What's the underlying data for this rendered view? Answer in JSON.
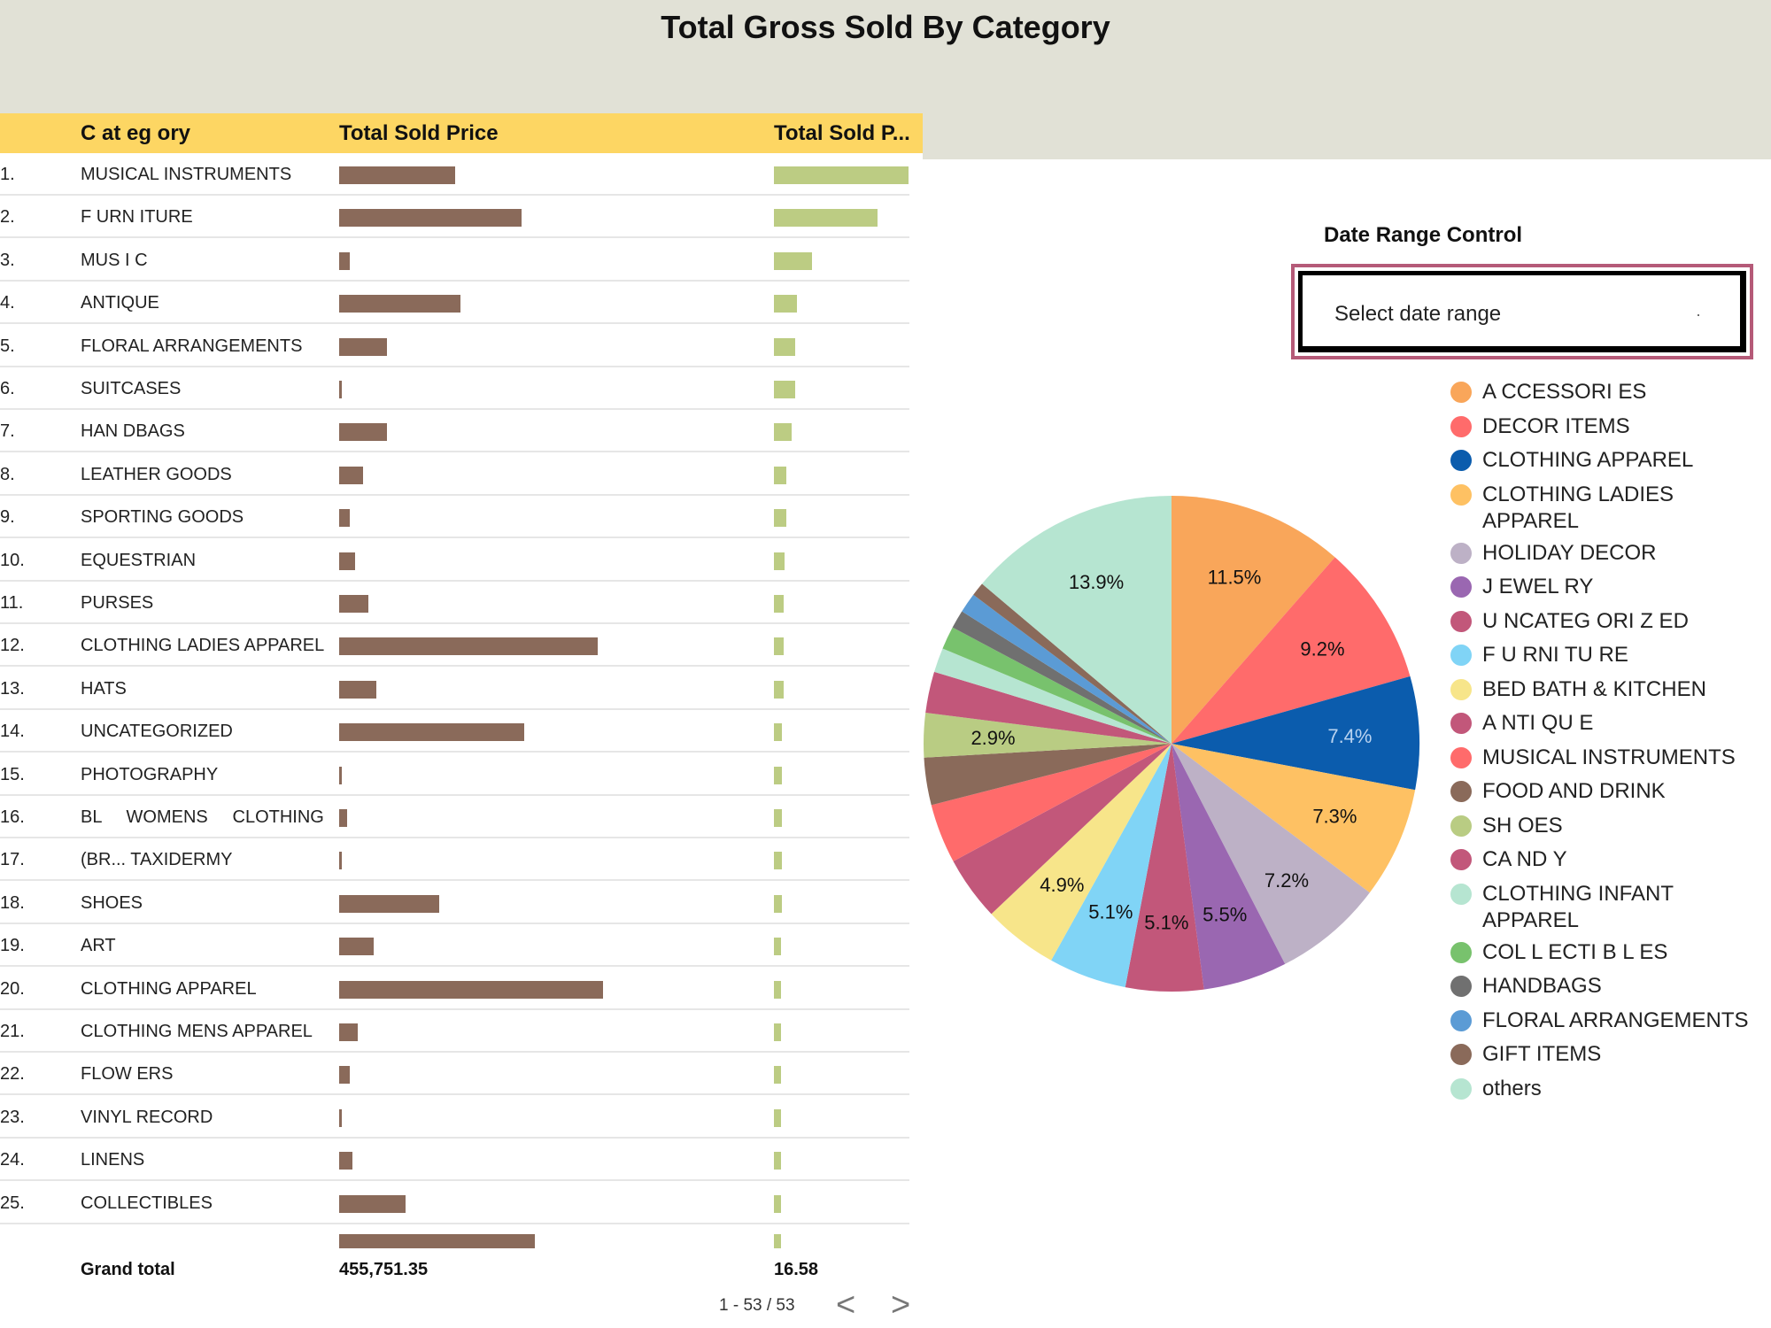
{
  "page": {
    "title": "Total Gross Sold By Category"
  },
  "table": {
    "headers": {
      "category": "C at eg ory",
      "total_sold_price": "Total Sold Price",
      "total_sold_p": "Total Sold P..."
    },
    "rows": [
      {
        "num": "1.",
        "category": "MUSICAL INSTRUMENTS",
        "price_bar": 0.44,
        "p_bar": 1.0
      },
      {
        "num": "2.",
        "category": "F URN ITURE",
        "price_bar": 0.69,
        "p_bar": 0.77
      },
      {
        "num": "3.",
        "category": "MUS I C",
        "price_bar": 0.04,
        "p_bar": 0.28
      },
      {
        "num": "4.",
        "category": "ANTIQUE",
        "price_bar": 0.46,
        "p_bar": 0.17
      },
      {
        "num": "5.",
        "category": "FLORAL ARRANGEMENTS",
        "price_bar": 0.18,
        "p_bar": 0.16
      },
      {
        "num": "6.",
        "category": "SUITCASES",
        "price_bar": 0.01,
        "p_bar": 0.16
      },
      {
        "num": "7.",
        "category": "HAN DBAGS",
        "price_bar": 0.18,
        "p_bar": 0.13
      },
      {
        "num": "8.",
        "category": "LEATHER GOODS",
        "price_bar": 0.09,
        "p_bar": 0.09
      },
      {
        "num": "9.",
        "category": "SPORTING GOODS",
        "price_bar": 0.04,
        "p_bar": 0.09
      },
      {
        "num": "10.",
        "category": "EQUESTRIAN",
        "price_bar": 0.06,
        "p_bar": 0.08
      },
      {
        "num": "11.",
        "category": "PURSES",
        "price_bar": 0.11,
        "p_bar": 0.07
      },
      {
        "num": "12.",
        "category": "CLOTHING LADIES APPAREL",
        "price_bar": 0.98,
        "p_bar": 0.07
      },
      {
        "num": "13.",
        "category": "HATS",
        "price_bar": 0.14,
        "p_bar": 0.07
      },
      {
        "num": "14.",
        "category": "UNCATEGORIZED",
        "price_bar": 0.7,
        "p_bar": 0.06
      },
      {
        "num": "15.",
        "category": "PHOTOGRAPHY",
        "price_bar": 0.01,
        "p_bar": 0.06
      },
      {
        "num": "16.",
        "category": "BL     WOMENS     CLOTHING",
        "price_bar": 0.03,
        "p_bar": 0.06
      },
      {
        "num": "17.",
        "category": "(BR... TAXIDERMY",
        "price_bar": 0.01,
        "p_bar": 0.06
      },
      {
        "num": "18.",
        "category": "SHOES",
        "price_bar": 0.38,
        "p_bar": 0.06
      },
      {
        "num": "19.",
        "category": "ART",
        "price_bar": 0.13,
        "p_bar": 0.05
      },
      {
        "num": "20.",
        "category": "CLOTHING APPAREL",
        "price_bar": 1.0,
        "p_bar": 0.05
      },
      {
        "num": "21.",
        "category": "CLOTHING MENS APPAREL",
        "price_bar": 0.07,
        "p_bar": 0.05
      },
      {
        "num": "22.",
        "category": "FLOW ERS",
        "price_bar": 0.04,
        "p_bar": 0.05
      },
      {
        "num": "23.",
        "category": "VINYL RECORD",
        "price_bar": 0.01,
        "p_bar": 0.05
      },
      {
        "num": "24.",
        "category": "LINENS",
        "price_bar": 0.05,
        "p_bar": 0.05
      },
      {
        "num": "25.",
        "category": "COLLECTIBLES",
        "price_bar": 0.25,
        "p_bar": 0.05
      }
    ],
    "grand_total": {
      "label": "Grand total",
      "total_sold_price": "455,751.35",
      "total_sold_p": "16.58",
      "price_bar": 0.74,
      "p_bar": 0.05
    },
    "pagination": {
      "text": "1 - 53 / 53",
      "prev": "<",
      "next": ">"
    }
  },
  "date_control": {
    "title": "Date Range Control",
    "placeholder": "Select date range"
  },
  "chart_data": {
    "type": "pie",
    "slices": [
      {
        "label": "A CCESSORI ES",
        "value": 11.5,
        "color": "#f9a65a",
        "shown_label": "11.5%"
      },
      {
        "label": "DECOR ITEMS",
        "value": 9.2,
        "color": "#ff6b6b",
        "shown_label": "9.2%"
      },
      {
        "label": "CLOTHING APPAREL",
        "value": 7.4,
        "color": "#0b5cad",
        "shown_label": "7.4%"
      },
      {
        "label": "CLOTHING LADIES\nAPPAREL",
        "value": 7.3,
        "color": "#fec163",
        "shown_label": "7.3%"
      },
      {
        "label": "HOLIDAY DECOR",
        "value": 7.2,
        "color": "#bdb1c6",
        "shown_label": "7.2%"
      },
      {
        "label": "J EWEL RY",
        "value": 5.5,
        "color": "#9a67b1",
        "shown_label": "5.5%"
      },
      {
        "label": "U NCATEG ORI Z ED",
        "value": 5.1,
        "color": "#c2577a",
        "shown_label": "5.1%"
      },
      {
        "label": "F U RNI TU RE",
        "value": 5.1,
        "color": "#80d4f6",
        "shown_label": "5.1%"
      },
      {
        "label": "BED BATH & KITCHEN",
        "value": 4.9,
        "color": "#f7e58a",
        "shown_label": "4.9%"
      },
      {
        "label": "A NTI QU E",
        "value": 4.2,
        "color": "#c2577a",
        "shown_label": ""
      },
      {
        "label": "MUSICAL INSTRUMENTS",
        "value": 3.9,
        "color": "#ff6b6b",
        "shown_label": ""
      },
      {
        "label": "FOOD AND DRINK",
        "value": 3.1,
        "color": "#8a6a5a",
        "shown_label": ""
      },
      {
        "label": "SH OES",
        "value": 2.9,
        "color": "#b9cc83",
        "shown_label": "2.9%"
      },
      {
        "label": "CA ND Y",
        "value": 2.7,
        "color": "#c2577a",
        "shown_label": ""
      },
      {
        "label": "CLOTHING INFANT\nAPPAREL",
        "value": 1.6,
        "color": "#b6e5d1",
        "shown_label": ""
      },
      {
        "label": "COL L ECTI B L ES",
        "value": 1.5,
        "color": "#78c26d",
        "shown_label": ""
      },
      {
        "label": "HANDBAGS",
        "value": 1.2,
        "color": "#707070",
        "shown_label": ""
      },
      {
        "label": "FLORAL ARRANGEMENTS",
        "value": 1.3,
        "color": "#5b9bd5",
        "shown_label": ""
      },
      {
        "label": "GIFT ITEMS",
        "value": 0.9,
        "color": "#8a6a5a",
        "shown_label": ""
      },
      {
        "label": "others",
        "value": 13.9,
        "color": "#b6e5d1",
        "shown_label": "13.9%"
      }
    ]
  }
}
